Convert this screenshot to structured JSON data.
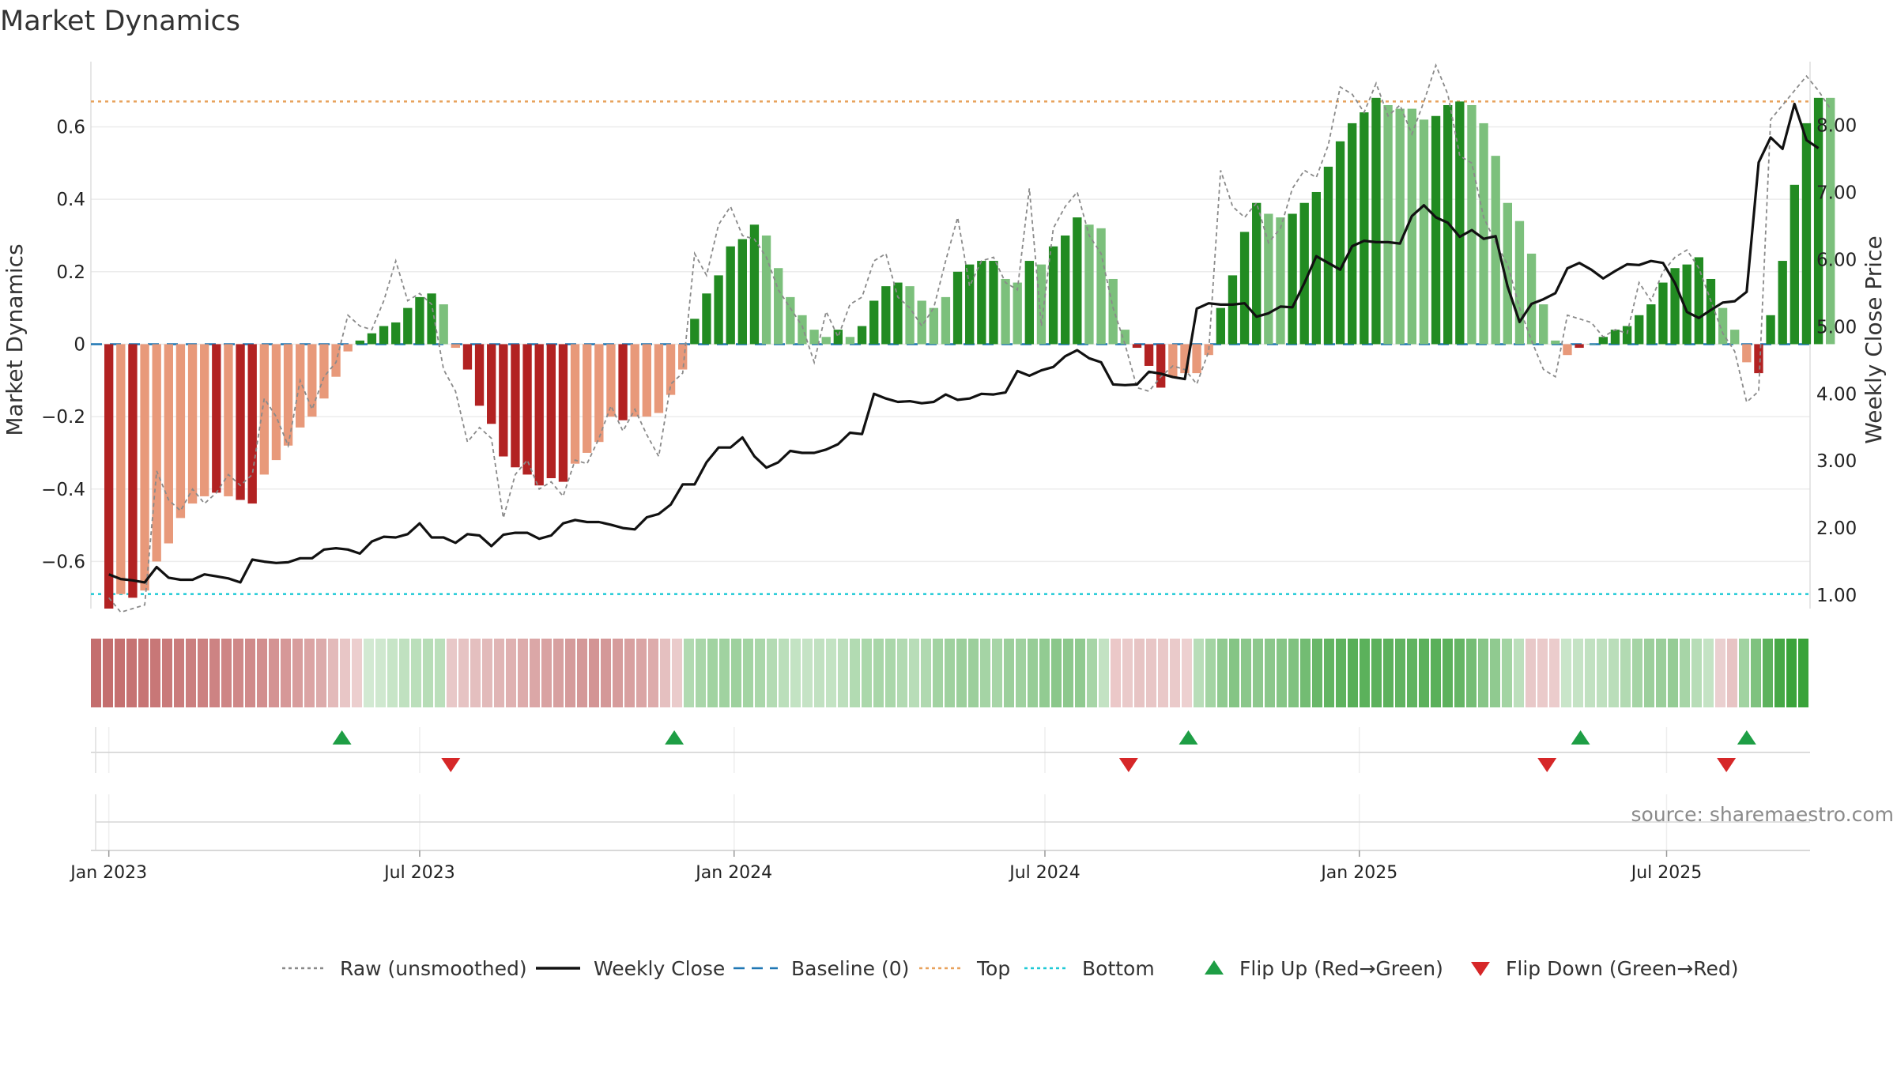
{
  "chart_data": {
    "type": "bar",
    "title": "Market Dynamics",
    "ylabel": "Market Dynamics",
    "y2label": "Weekly Close Price",
    "ylim": [
      -0.73,
      0.78
    ],
    "y2lim": [
      0.8,
      8.95
    ],
    "yticks": [
      -0.6,
      -0.4,
      -0.2,
      0,
      0.2,
      0.4,
      0.6
    ],
    "ytick_labels": [
      "−0.6",
      "−0.4",
      "−0.2",
      "0",
      "0.2",
      "0.4",
      "0.6"
    ],
    "y2ticks": [
      1,
      2,
      3,
      4,
      5,
      6,
      7,
      8
    ],
    "y2tick_labels": [
      "1.00",
      "2.00",
      "3.00",
      "4.00",
      "5.00",
      "6.00",
      "7.00",
      "8.00"
    ],
    "xlim": [
      -1.5,
      142.3
    ],
    "xticks": [
      0,
      26,
      52.3,
      78.3,
      104.6,
      130.3
    ],
    "xtick_labels": [
      "Jan 2023",
      "Jul 2023",
      "Jan 2024",
      "Jul 2024",
      "Jan 2025",
      "Jul 2025"
    ],
    "top_line": 0.67,
    "bottom_line": -0.69,
    "baseline": 0,
    "grid": true,
    "legend_position": "bottom",
    "legend": [
      {
        "label": "Raw (unsmoothed)",
        "kind": "dotted-line",
        "color": "#8a8a8a"
      },
      {
        "label": "Weekly Close",
        "kind": "line",
        "color": "#111111"
      },
      {
        "label": "Baseline (0)",
        "kind": "dashed-line",
        "color": "#1f77b4"
      },
      {
        "label": "Top",
        "kind": "dotted-line",
        "color": "#e8a25c"
      },
      {
        "label": "Bottom",
        "kind": "dotted-line",
        "color": "#1fc9d6"
      },
      {
        "label": "Flip Up (Red→Green)",
        "kind": "triangle-up",
        "color": "#1e9e45"
      },
      {
        "label": "Flip Down (Green→Red)",
        "kind": "triangle-down",
        "color": "#d62728"
      }
    ],
    "colors": {
      "strong_green": "#228b22",
      "light_green": "#7cc07c",
      "strong_red": "#b22222",
      "light_red": "#e8997a",
      "baseline": "#1f77b4",
      "top": "#e8a25c",
      "bottom": "#1fc9d6"
    },
    "series_bars_values": [
      -0.73,
      -0.69,
      -0.7,
      -0.68,
      -0.6,
      -0.55,
      -0.48,
      -0.44,
      -0.42,
      -0.41,
      -0.42,
      -0.43,
      -0.44,
      -0.36,
      -0.32,
      -0.28,
      -0.23,
      -0.2,
      -0.15,
      -0.09,
      -0.02,
      0.01,
      0.03,
      0.05,
      0.06,
      0.1,
      0.13,
      0.14,
      0.11,
      -0.01,
      -0.07,
      -0.17,
      -0.22,
      -0.31,
      -0.34,
      -0.36,
      -0.39,
      -0.37,
      -0.38,
      -0.33,
      -0.3,
      -0.27,
      -0.2,
      -0.21,
      -0.2,
      -0.2,
      -0.19,
      -0.14,
      -0.07,
      0.07,
      0.14,
      0.19,
      0.27,
      0.29,
      0.33,
      0.3,
      0.21,
      0.13,
      0.08,
      0.04,
      0.02,
      0.04,
      0.02,
      0.05,
      0.12,
      0.16,
      0.17,
      0.16,
      0.12,
      0.1,
      0.13,
      0.2,
      0.22,
      0.23,
      0.23,
      0.18,
      0.17,
      0.23,
      0.22,
      0.27,
      0.3,
      0.35,
      0.33,
      0.32,
      0.18,
      0.04,
      -0.01,
      -0.06,
      -0.12,
      -0.09,
      -0.08,
      -0.08,
      -0.03,
      0.1,
      0.19,
      0.31,
      0.39,
      0.36,
      0.35,
      0.36,
      0.39,
      0.42,
      0.49,
      0.56,
      0.61,
      0.64,
      0.68,
      0.66,
      0.65,
      0.65,
      0.62,
      0.63,
      0.66,
      0.67,
      0.66,
      0.61,
      0.52,
      0.39,
      0.34,
      0.25,
      0.11,
      0.01,
      -0.03,
      -0.01,
      0.0,
      0.02,
      0.04,
      0.05,
      0.08,
      0.11,
      0.17,
      0.21,
      0.22,
      0.24,
      0.18,
      0.1,
      0.04,
      -0.05,
      -0.08,
      0.08,
      0.23,
      0.44,
      0.61,
      0.68,
      0.68
    ],
    "series_bars_strong": [
      1,
      0,
      1,
      0,
      0,
      0,
      0,
      0,
      0,
      1,
      0,
      1,
      1,
      0,
      0,
      0,
      0,
      0,
      0,
      0,
      0,
      1,
      1,
      1,
      1,
      1,
      1,
      1,
      0,
      0,
      1,
      1,
      1,
      1,
      1,
      1,
      1,
      1,
      1,
      0,
      0,
      0,
      0,
      1,
      0,
      0,
      0,
      0,
      0,
      1,
      1,
      1,
      1,
      1,
      1,
      0,
      0,
      0,
      0,
      0,
      0,
      1,
      0,
      1,
      1,
      1,
      1,
      0,
      0,
      0,
      0,
      1,
      1,
      1,
      1,
      0,
      0,
      1,
      0,
      1,
      1,
      1,
      0,
      0,
      0,
      0,
      1,
      1,
      1,
      0,
      0,
      0,
      0,
      1,
      1,
      1,
      1,
      0,
      0,
      1,
      1,
      1,
      1,
      1,
      1,
      1,
      1,
      0,
      0,
      0,
      0,
      1,
      1,
      1,
      0,
      0,
      0,
      0,
      0,
      0,
      0,
      0,
      0,
      1,
      0,
      1,
      1,
      1,
      1,
      1,
      1,
      1,
      1,
      1,
      1,
      0,
      0,
      0,
      1,
      1,
      1,
      1,
      1,
      1,
      0,
      0
    ],
    "series_raw_values": [
      -0.7,
      -0.74,
      -0.73,
      -0.72,
      -0.35,
      -0.43,
      -0.46,
      -0.4,
      -0.44,
      -0.41,
      -0.36,
      -0.39,
      -0.36,
      -0.15,
      -0.2,
      -0.28,
      -0.1,
      -0.18,
      -0.09,
      -0.05,
      0.08,
      0.05,
      0.04,
      0.12,
      0.23,
      0.12,
      0.14,
      0.11,
      -0.07,
      -0.13,
      -0.27,
      -0.23,
      -0.26,
      -0.48,
      -0.36,
      -0.32,
      -0.4,
      -0.38,
      -0.42,
      -0.32,
      -0.33,
      -0.26,
      -0.17,
      -0.24,
      -0.18,
      -0.25,
      -0.31,
      -0.11,
      -0.08,
      0.25,
      0.19,
      0.33,
      0.38,
      0.3,
      0.29,
      0.24,
      0.15,
      0.1,
      0.05,
      -0.05,
      0.09,
      0.02,
      0.11,
      0.13,
      0.23,
      0.25,
      0.13,
      0.1,
      0.05,
      0.1,
      0.23,
      0.35,
      0.16,
      0.23,
      0.24,
      0.17,
      0.15,
      0.43,
      0.05,
      0.32,
      0.38,
      0.42,
      0.3,
      0.25,
      0.1,
      0.0,
      -0.12,
      -0.13,
      -0.09,
      -0.06,
      -0.07,
      -0.11,
      -0.02,
      0.48,
      0.38,
      0.35,
      0.39,
      0.28,
      0.32,
      0.43,
      0.48,
      0.46,
      0.55,
      0.71,
      0.69,
      0.64,
      0.72,
      0.63,
      0.66,
      0.58,
      0.67,
      0.77,
      0.69,
      0.52,
      0.5,
      0.35,
      0.28,
      0.22,
      0.1,
      0.01,
      -0.07,
      -0.09,
      0.08,
      0.07,
      0.06,
      0.02,
      0.04,
      0.03,
      0.17,
      0.12,
      0.2,
      0.24,
      0.26,
      0.21,
      0.12,
      0.03,
      -0.02,
      -0.16,
      -0.13,
      0.62,
      0.66,
      0.7,
      0.74,
      0.7,
      0.65
    ],
    "series_close_values": [
      1.31,
      1.24,
      1.22,
      1.19,
      1.42,
      1.26,
      1.23,
      1.23,
      1.31,
      1.28,
      1.25,
      1.19,
      1.53,
      1.5,
      1.48,
      1.49,
      1.55,
      1.55,
      1.68,
      1.7,
      1.68,
      1.62,
      1.8,
      1.87,
      1.86,
      1.91,
      2.07,
      1.86,
      1.86,
      1.78,
      1.91,
      1.89,
      1.73,
      1.9,
      1.93,
      1.93,
      1.84,
      1.89,
      2.07,
      2.12,
      2.09,
      2.09,
      2.05,
      2.0,
      1.98,
      2.16,
      2.21,
      2.35,
      2.65,
      2.65,
      2.98,
      3.2,
      3.2,
      3.35,
      3.07,
      2.9,
      2.98,
      3.15,
      3.12,
      3.12,
      3.17,
      3.25,
      3.42,
      3.4,
      4.0,
      3.93,
      3.88,
      3.89,
      3.86,
      3.88,
      3.99,
      3.91,
      3.93,
      4.0,
      3.99,
      4.02,
      4.34,
      4.27,
      4.35,
      4.4,
      4.56,
      4.65,
      4.53,
      4.47,
      4.14,
      4.13,
      4.14,
      4.33,
      4.3,
      4.25,
      4.22,
      5.27,
      5.35,
      5.33,
      5.33,
      5.35,
      5.15,
      5.2,
      5.3,
      5.29,
      5.65,
      6.05,
      5.95,
      5.85,
      6.2,
      6.28,
      6.26,
      6.26,
      6.24,
      6.65,
      6.81,
      6.63,
      6.55,
      6.34,
      6.44,
      6.31,
      6.35,
      5.6,
      5.07,
      5.34,
      5.41,
      5.5,
      5.87,
      5.95,
      5.85,
      5.72,
      5.83,
      5.93,
      5.92,
      5.98,
      5.95,
      5.65,
      5.22,
      5.13,
      5.25,
      5.36,
      5.38,
      5.52,
      7.45,
      7.82,
      7.65,
      8.32,
      7.78,
      7.66
    ],
    "strip_colors": [
      "#c46e6e",
      "#c46e6e",
      "#c57070",
      "#c67373",
      "#c77575",
      "#c87777",
      "#c97a7a",
      "#ca7c7c",
      "#cb7f7f",
      "#cc8181",
      "#cd8383",
      "#ce8585",
      "#cf8888",
      "#d08a8a",
      "#d28e8e",
      "#d49393",
      "#d69898",
      "#d89d9d",
      "#dba4a4",
      "#dcabab",
      "#e3baba",
      "#e8c6c6",
      "#eccece",
      "#d2e9d2",
      "#cfe8cf",
      "#c7e5c7",
      "#c0e1c0",
      "#bbdfbb",
      "#b7ddb7",
      "#bbdfbb",
      "#e8c8c8",
      "#e6c3c3",
      "#e4bfbf",
      "#e2baba",
      "#e0b5b5",
      "#dfb1b1",
      "#ddabab",
      "#dba7a7",
      "#d9a2a2",
      "#d7a0a0",
      "#d59b9b",
      "#d49898",
      "#d39494",
      "#d49898",
      "#d69c9c",
      "#d8a0a0",
      "#daa5a5",
      "#ddabab",
      "#e5c0c0",
      "#eacbcb",
      "#b1dab1",
      "#a9d6a9",
      "#a1d3a1",
      "#a0d2a0",
      "#9ed19e",
      "#a3d4a3",
      "#aad7aa",
      "#b3dbb3",
      "#bbdfbb",
      "#c3e3c3",
      "#c5e3c5",
      "#c1e1c1",
      "#c3e3c3",
      "#bcdfbc",
      "#b2dbb2",
      "#abd8ab",
      "#a8d6a8",
      "#aad7aa",
      "#b2dab2",
      "#b8ddb8",
      "#b0d9b0",
      "#a2d3a2",
      "#9fd19f",
      "#9ccf9c",
      "#9ccf9c",
      "#a5d4a5",
      "#a7d5a7",
      "#9ccf9c",
      "#9fd19f",
      "#97cd97",
      "#92cb92",
      "#8ac78a",
      "#8dc88d",
      "#90ca90",
      "#a7d5a7",
      "#c3e2c3",
      "#ebc8c8",
      "#eacaca",
      "#e7c4c4",
      "#e8c6c6",
      "#e9c8c8",
      "#eacaca",
      "#edd0d0",
      "#b8ddb8",
      "#a3d4a3",
      "#90ca90",
      "#85c585",
      "#8bc78b",
      "#8dc88d",
      "#8bc78b",
      "#86c586",
      "#80c280",
      "#73bc73",
      "#69b769",
      "#62b462",
      "#5eb25e",
      "#58af58",
      "#5bb15b",
      "#5cb15c",
      "#5cb15c",
      "#61b361",
      "#60b360",
      "#5cb15c",
      "#5ab05a",
      "#5cb15c",
      "#65b565",
      "#75bd75",
      "#88c688",
      "#90ca90",
      "#a3d4a3",
      "#bcdfbc",
      "#e8c8c8",
      "#eacaca",
      "#ebcccc",
      "#c9e5c9",
      "#c5e3c5",
      "#c1e1c1",
      "#bfe0bf",
      "#badeba",
      "#b2dab2",
      "#a5d4a5",
      "#9ccf9c",
      "#9ace9a",
      "#95cc95",
      "#a7d5a7",
      "#b7ddb7",
      "#c4e3c4",
      "#ead0d0",
      "#e7c4c4",
      "#a1d3a1",
      "#7fc27f",
      "#5db25d",
      "#46a846",
      "#3aa33a",
      "#3aa33a"
    ],
    "flips_up": [
      19.5,
      47.3,
      90.3,
      123.1,
      137.0
    ],
    "flips_down": [
      28.6,
      85.3,
      120.3,
      135.3
    ],
    "annotation": "source: sharemaestro.com"
  }
}
